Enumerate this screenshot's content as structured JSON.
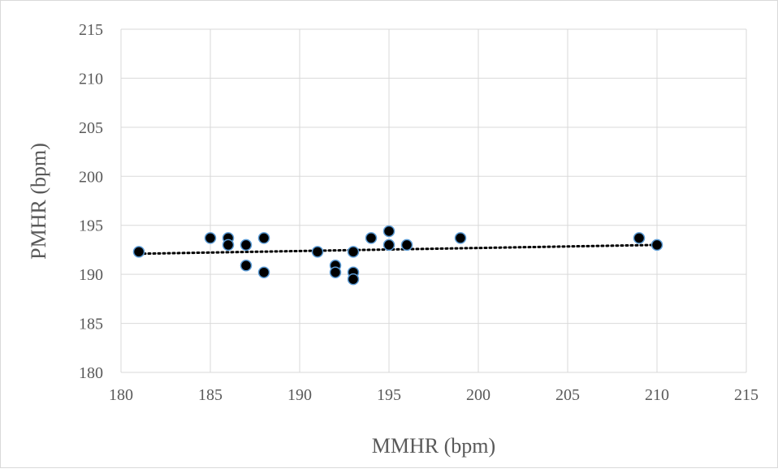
{
  "chart_data": {
    "type": "scatter",
    "xlabel": "MMHR (bpm)",
    "ylabel": "PMHR (bpm)",
    "xlim": [
      180,
      215
    ],
    "ylim": [
      180,
      215
    ],
    "xticks": [
      180,
      185,
      190,
      195,
      200,
      205,
      210,
      215
    ],
    "yticks": [
      180,
      185,
      190,
      195,
      200,
      205,
      210,
      215
    ],
    "grid": true,
    "legend": "none",
    "marker_color": "#000000",
    "marker_edge_color": "#5b9bd5",
    "trendline": {
      "type": "linear",
      "style": "dotted",
      "color": "#000000",
      "x": [
        181,
        210
      ],
      "y": [
        192.1,
        193.0
      ]
    },
    "points": [
      {
        "x": 181,
        "y": 192.3
      },
      {
        "x": 185,
        "y": 193.7
      },
      {
        "x": 186,
        "y": 193.7
      },
      {
        "x": 186,
        "y": 193.0
      },
      {
        "x": 187,
        "y": 193.0
      },
      {
        "x": 187,
        "y": 190.9
      },
      {
        "x": 188,
        "y": 193.7
      },
      {
        "x": 188,
        "y": 190.2
      },
      {
        "x": 191,
        "y": 192.3
      },
      {
        "x": 192,
        "y": 190.9
      },
      {
        "x": 192,
        "y": 190.2
      },
      {
        "x": 193,
        "y": 192.3
      },
      {
        "x": 193,
        "y": 190.2
      },
      {
        "x": 193,
        "y": 189.5
      },
      {
        "x": 194,
        "y": 193.7
      },
      {
        "x": 195,
        "y": 194.4
      },
      {
        "x": 195,
        "y": 193.0
      },
      {
        "x": 196,
        "y": 193.0
      },
      {
        "x": 199,
        "y": 193.7
      },
      {
        "x": 209,
        "y": 193.7
      },
      {
        "x": 210,
        "y": 193.0
      }
    ]
  }
}
